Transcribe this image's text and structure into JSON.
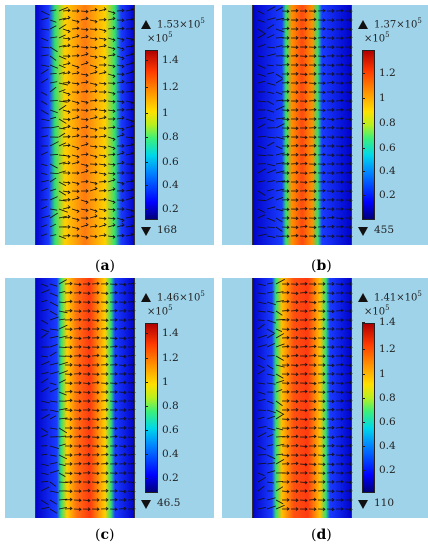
{
  "panels": [
    {
      "id": "a",
      "label": "a",
      "max_base": "1.53×10",
      "max_exp": "5",
      "scale_base": "×10",
      "scale_exp": "5",
      "min": "168",
      "ticks": [
        "1.4",
        "1.2",
        "1",
        "0.8",
        "0.6",
        "0.4",
        "0.2"
      ]
    },
    {
      "id": "b",
      "label": "b",
      "max_base": "1.37×10",
      "max_exp": "5",
      "scale_base": "×10",
      "scale_exp": "5",
      "min": "455",
      "ticks": [
        "1.2",
        "1",
        "0.8",
        "0.6",
        "0.4",
        "0.2"
      ]
    },
    {
      "id": "c",
      "label": "c",
      "max_base": "1.46×10",
      "max_exp": "5",
      "scale_base": "×10",
      "scale_exp": "5",
      "min": "46.5",
      "ticks": [
        "1.4",
        "1.2",
        "1",
        "0.8",
        "0.6",
        "0.4",
        "0.2"
      ]
    },
    {
      "id": "d",
      "label": "d",
      "max_base": "1.41×10",
      "max_exp": "5",
      "scale_base": "×10",
      "scale_exp": "5",
      "min": "110",
      "ticks": [
        "1.4",
        "1.2",
        "1",
        "0.8",
        "0.6",
        "0.4",
        "0.2"
      ]
    }
  ],
  "colors": {
    "background": "#9ed3ea",
    "low": "#0000ff",
    "high": "#ff3a00"
  }
}
